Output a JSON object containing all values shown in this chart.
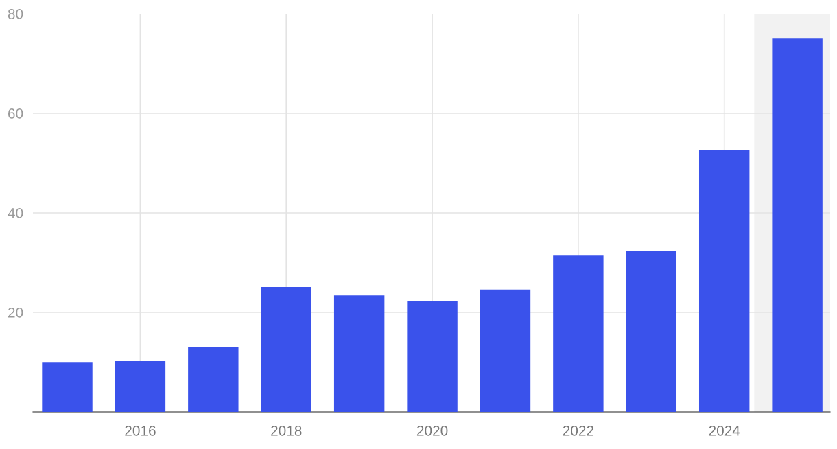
{
  "chart_data": {
    "type": "bar",
    "x": [
      2015,
      2016,
      2017,
      2018,
      2019,
      2020,
      2021,
      2022,
      2023,
      2024,
      2025
    ],
    "series": [
      {
        "color": "#3a52eb",
        "values": [
          9.9,
          10.2,
          13.1,
          25.1,
          23.4,
          22.2,
          24.6,
          31.4,
          32.3,
          52.6,
          75.0
        ]
      }
    ],
    "xlim": [
      2014.53,
      2025.45
    ],
    "xticks": [
      2016,
      2018,
      2020,
      2022,
      2024
    ],
    "ylim": [
      0,
      80
    ],
    "yticks": [
      20,
      40,
      60,
      80
    ],
    "bands": [
      {
        "axis": "x",
        "from": 2024.41,
        "to": 2025.45,
        "color": "#f2f2f2"
      }
    ],
    "grid": true,
    "legend": false
  }
}
